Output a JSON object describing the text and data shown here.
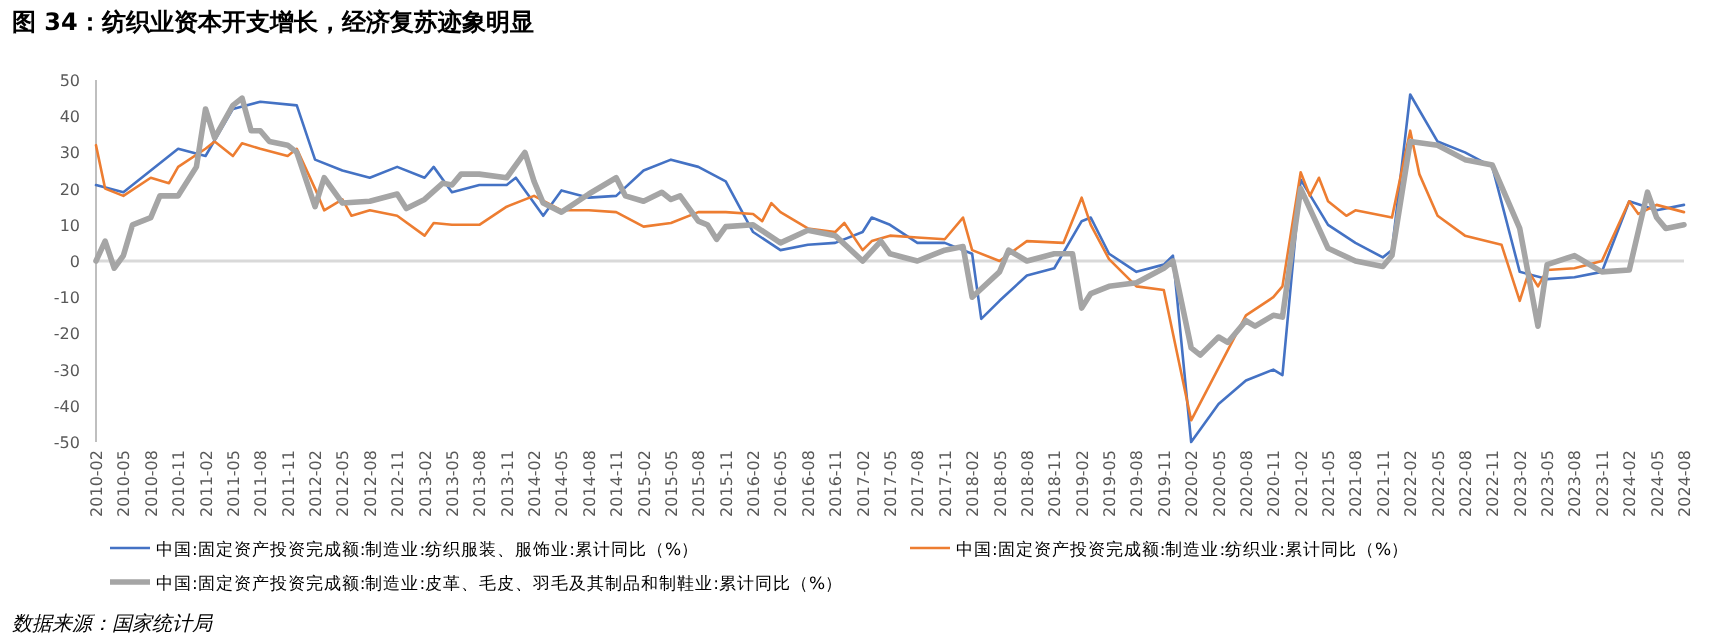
{
  "chart_data": {
    "type": "line",
    "title": "图 34：纺织业资本开支增长，经济复苏迹象明显",
    "xlim": [
      "2010-02",
      "2024-08"
    ],
    "xticks": [
      "2010-02",
      "2010-05",
      "2010-08",
      "2010-11",
      "2011-02",
      "2011-05",
      "2011-08",
      "2011-11",
      "2012-02",
      "2012-05",
      "2012-08",
      "2012-11",
      "2013-02",
      "2013-05",
      "2013-08",
      "2013-11",
      "2014-02",
      "2014-05",
      "2014-08",
      "2014-11",
      "2015-02",
      "2015-05",
      "2015-08",
      "2015-11",
      "2016-02",
      "2016-05",
      "2016-08",
      "2016-11",
      "2017-02",
      "2017-05",
      "2017-08",
      "2017-11",
      "2018-02",
      "2018-05",
      "2018-08",
      "2018-11",
      "2019-02",
      "2019-05",
      "2019-08",
      "2019-11",
      "2020-02",
      "2020-05",
      "2020-08",
      "2020-11",
      "2021-02",
      "2021-05",
      "2021-08",
      "2021-11",
      "2022-02",
      "2022-05",
      "2022-08",
      "2022-11",
      "2023-02",
      "2023-05",
      "2023-08",
      "2023-11",
      "2024-02",
      "2024-05",
      "2024-08"
    ],
    "ylim": [
      -50,
      50
    ],
    "yticks": [
      -50,
      -40,
      -30,
      -20,
      -10,
      0,
      10,
      20,
      30,
      40,
      50
    ],
    "ref_lines": [
      {
        "axis": "y",
        "value": 0,
        "color": "#d9d9d9"
      }
    ],
    "grid": false,
    "legend": "bottom",
    "marker": "none",
    "line_style": "solid",
    "series": [
      {
        "name": "中国:固定资产投资完成额:制造业:纺织服装、服饰业:累计同比（%）",
        "color": "#4472c4",
        "x": [
          "2010-02",
          "2010-05",
          "2010-08",
          "2010-11",
          "2011-02",
          "2011-05",
          "2011-08",
          "2011-12",
          "2012-02",
          "2012-05",
          "2012-08",
          "2012-11",
          "2013-02",
          "2013-03",
          "2013-05",
          "2013-08",
          "2013-11",
          "2013-12",
          "2014-02",
          "2014-03",
          "2014-05",
          "2014-08",
          "2014-11",
          "2015-02",
          "2015-05",
          "2015-08",
          "2015-11",
          "2016-02",
          "2016-05",
          "2016-08",
          "2016-11",
          "2017-02",
          "2017-03",
          "2017-05",
          "2017-08",
          "2017-11",
          "2018-02",
          "2018-03",
          "2018-05",
          "2018-08",
          "2018-11",
          "2019-02",
          "2019-03",
          "2019-05",
          "2019-08",
          "2019-11",
          "2019-12",
          "2020-02",
          "2020-05",
          "2020-08",
          "2020-11",
          "2020-12",
          "2021-02",
          "2021-05",
          "2021-08",
          "2021-11",
          "2021-12",
          "2022-02",
          "2022-05",
          "2022-08",
          "2022-11",
          "2023-02",
          "2023-05",
          "2023-08",
          "2023-11",
          "2024-02",
          "2024-05",
          "2024-08"
        ],
        "values": [
          21,
          19,
          25,
          31,
          29,
          42,
          44,
          43,
          28,
          25,
          23,
          26,
          23,
          26,
          19,
          21,
          21,
          23,
          16,
          12.5,
          19.5,
          17.5,
          18,
          25,
          28,
          26,
          22,
          8,
          3,
          4.5,
          5,
          8,
          12,
          10,
          5,
          5,
          2,
          -16,
          -11,
          -4,
          -2,
          11,
          12,
          2,
          -3,
          -1,
          1.5,
          -50,
          -39.5,
          -33,
          -30,
          -31.5,
          22.5,
          10,
          5,
          1,
          3,
          46,
          33,
          30,
          26,
          -3,
          -5,
          -4.5,
          -3,
          16.5,
          14,
          15.5
        ]
      },
      {
        "name": "中国:固定资产投资完成额:制造业:纺织业:累计同比（%）",
        "color": "#ed7d31",
        "x": [
          "2010-02",
          "2010-03",
          "2010-05",
          "2010-08",
          "2010-10",
          "2010-11",
          "2011-02",
          "2011-03",
          "2011-05",
          "2011-06",
          "2011-08",
          "2011-11",
          "2011-12",
          "2012-02",
          "2012-03",
          "2012-05",
          "2012-06",
          "2012-08",
          "2012-11",
          "2013-02",
          "2013-03",
          "2013-05",
          "2013-08",
          "2013-11",
          "2014-02",
          "2014-05",
          "2014-08",
          "2014-11",
          "2015-02",
          "2015-05",
          "2015-08",
          "2015-11",
          "2016-02",
          "2016-03",
          "2016-04",
          "2016-05",
          "2016-08",
          "2016-11",
          "2016-12",
          "2017-02",
          "2017-03",
          "2017-05",
          "2017-08",
          "2017-11",
          "2018-01",
          "2018-02",
          "2018-05",
          "2018-08",
          "2018-12",
          "2019-02",
          "2019-03",
          "2019-05",
          "2019-08",
          "2019-11",
          "2020-02",
          "2020-05",
          "2020-08",
          "2020-11",
          "2020-12",
          "2021-02",
          "2021-03",
          "2021-04",
          "2021-05",
          "2021-07",
          "2021-08",
          "2021-12",
          "2022-02",
          "2022-03",
          "2022-05",
          "2022-08",
          "2022-12",
          "2023-02",
          "2023-03",
          "2023-04",
          "2023-05",
          "2023-08",
          "2023-11",
          "2024-02",
          "2024-03",
          "2024-05",
          "2024-08"
        ],
        "values": [
          32,
          20,
          18,
          23,
          21.5,
          26,
          31,
          33,
          29,
          32.5,
          31,
          29,
          31,
          20,
          14,
          17,
          12.5,
          14,
          12.5,
          7,
          10.5,
          10,
          10,
          15,
          18,
          14,
          14,
          13.5,
          9.5,
          10.5,
          13.5,
          13.5,
          13,
          11,
          16,
          13.5,
          9,
          8,
          10.5,
          3,
          5.5,
          7,
          6.5,
          6,
          12,
          3,
          0,
          5.5,
          5,
          17.5,
          10,
          0.5,
          -7,
          -8,
          -44,
          -29.5,
          -15,
          -10,
          -7,
          24.5,
          18,
          23,
          16.5,
          12.5,
          14,
          12,
          36,
          24,
          12.5,
          7,
          4.5,
          -11,
          -3,
          -7,
          -2.5,
          -2,
          0,
          16.5,
          13,
          15.5,
          13.5
        ]
      },
      {
        "name": "中国:固定资产投资完成额:制造业:皮革、毛皮、羽毛及其制品和制鞋业:累计同比（%）",
        "color": "#a5a5a5",
        "x": [
          "2010-02",
          "2010-03",
          "2010-04",
          "2010-05",
          "2010-06",
          "2010-08",
          "2010-09",
          "2010-11",
          "2011-01",
          "2011-02",
          "2011-03",
          "2011-05",
          "2011-06",
          "2011-07",
          "2011-08",
          "2011-09",
          "2011-11",
          "2011-12",
          "2012-02",
          "2012-03",
          "2012-05",
          "2012-08",
          "2012-11",
          "2012-12",
          "2013-02",
          "2013-04",
          "2013-05",
          "2013-06",
          "2013-08",
          "2013-11",
          "2014-01",
          "2014-02",
          "2014-03",
          "2014-05",
          "2014-08",
          "2014-11",
          "2014-12",
          "2015-02",
          "2015-04",
          "2015-05",
          "2015-06",
          "2015-08",
          "2015-09",
          "2015-10",
          "2015-11",
          "2016-02",
          "2016-05",
          "2016-08",
          "2016-11",
          "2017-02",
          "2017-04",
          "2017-05",
          "2017-08",
          "2017-11",
          "2018-01",
          "2018-02",
          "2018-05",
          "2018-06",
          "2018-08",
          "2018-11",
          "2019-01",
          "2019-02",
          "2019-03",
          "2019-05",
          "2019-08",
          "2019-11",
          "2019-12",
          "2020-02",
          "2020-03",
          "2020-05",
          "2020-06",
          "2020-08",
          "2020-09",
          "2020-11",
          "2020-12",
          "2021-02",
          "2021-05",
          "2021-08",
          "2021-11",
          "2021-12",
          "2022-02",
          "2022-05",
          "2022-08",
          "2022-11",
          "2023-02",
          "2023-04",
          "2023-05",
          "2023-08",
          "2023-11",
          "2024-02",
          "2024-04",
          "2024-05",
          "2024-06",
          "2024-08"
        ],
        "values": [
          0,
          5.5,
          -2,
          1.5,
          10,
          12,
          18,
          18,
          26,
          42,
          34,
          43,
          45,
          36,
          36,
          33,
          32,
          30,
          15,
          23,
          16,
          16.5,
          18.5,
          14.5,
          17,
          21.5,
          21,
          24,
          24,
          23,
          30,
          22,
          16,
          13.5,
          18.5,
          23,
          18,
          16.5,
          19,
          17,
          18,
          11,
          10,
          6,
          9.5,
          10,
          5,
          8.5,
          7,
          0,
          5.5,
          2,
          0,
          3,
          4,
          -10,
          -3,
          3,
          0,
          2,
          2,
          -13,
          -9,
          -7,
          -6,
          -2,
          0,
          -24,
          -26,
          -21,
          -22.5,
          -16.5,
          -18,
          -15,
          -15.5,
          20,
          3.5,
          0,
          -1.5,
          1.5,
          33,
          32,
          28,
          26.5,
          9,
          -18,
          -1,
          1.5,
          -3,
          -2.5,
          19,
          12,
          9,
          10
        ]
      }
    ],
    "annotations": [
      "数据来源：国家统计局"
    ]
  }
}
